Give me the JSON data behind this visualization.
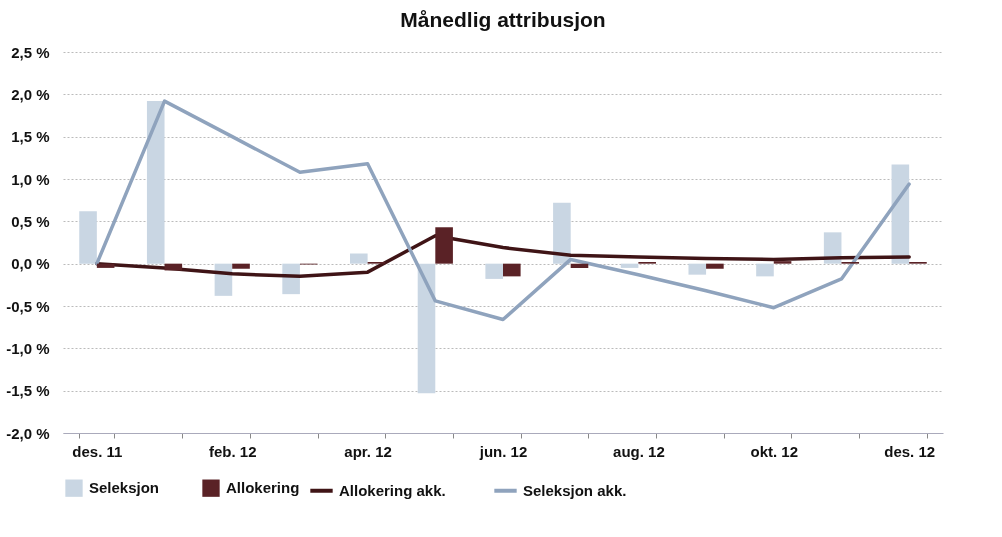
{
  "chart_data": {
    "type": "bar",
    "title": "Månedlig attribusjon",
    "categories": [
      "des. 11",
      null,
      "feb. 12",
      null,
      "apr. 12",
      null,
      "jun. 12",
      null,
      "aug. 12",
      null,
      "okt. 12",
      null,
      "des. 12"
    ],
    "series": [
      {
        "name": "Seleksjon",
        "type": "bar",
        "color": "#c9d6e3",
        "values": [
          0.62,
          1.92,
          -0.38,
          -0.36,
          0.12,
          -1.53,
          -0.18,
          0.72,
          -0.05,
          -0.13,
          -0.15,
          0.37,
          1.17
        ]
      },
      {
        "name": "Allokering",
        "type": "bar",
        "color": "#5a2226",
        "values": [
          -0.05,
          -0.08,
          -0.06,
          -0.01,
          0.02,
          0.43,
          -0.15,
          -0.05,
          0.02,
          -0.06,
          0.03,
          0.02,
          0.02
        ]
      },
      {
        "name": "Allokering akk.",
        "type": "line",
        "color": "#3f1416",
        "values": [
          0,
          -0.05,
          -0.12,
          -0.15,
          -0.1,
          0.33,
          0.19,
          0.1,
          0.08,
          0.06,
          0.05,
          0.07,
          0.08
        ]
      },
      {
        "name": "Seleksjon akk.",
        "type": "line",
        "color": "#8fa3bd",
        "values": [
          0,
          1.92,
          1.5,
          1.08,
          1.18,
          -0.44,
          -0.66,
          0.05,
          -0.13,
          -0.32,
          -0.52,
          -0.18,
          0.94
        ]
      }
    ],
    "ylim": [
      -2.0,
      2.5
    ],
    "yticks": [
      {
        "value": -2.0,
        "label": "-2,0 %"
      },
      {
        "value": -1.5,
        "label": "-1,5 %"
      },
      {
        "value": -1.0,
        "label": "-1,0 %"
      },
      {
        "value": -0.5,
        "label": "-0,5 %"
      },
      {
        "value": 0,
        "label": "0,0 %"
      },
      {
        "value": 0.5,
        "label": "0,5 %"
      },
      {
        "value": 1.0,
        "label": "1,0 %"
      },
      {
        "value": 1.5,
        "label": "1,5 %"
      },
      {
        "value": 2.0,
        "label": "2,0 %"
      },
      {
        "value": 2.5,
        "label": "2,5 %"
      }
    ],
    "grid": "y",
    "legend": "bottom"
  }
}
